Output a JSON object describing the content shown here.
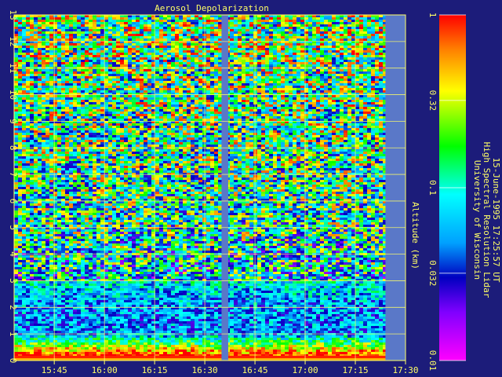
{
  "chart_data": {
    "type": "heatmap",
    "title": "Aerosol Depolarization",
    "ylabel": "Altitude (km)",
    "xlabel": "",
    "x_ticks": [
      "15:45",
      "16:00",
      "16:15",
      "16:30",
      "16:45",
      "17:00",
      "17:15",
      "17:30"
    ],
    "x_range": [
      "15:33",
      "17:30"
    ],
    "y_ticks": [
      0,
      1,
      2,
      3,
      4,
      5,
      6,
      7,
      8,
      9,
      10,
      11,
      12,
      13
    ],
    "ylim": [
      0,
      13
    ],
    "grid": true,
    "colorbar": {
      "scale": "log",
      "range": [
        0.01,
        1
      ],
      "tick_labels": [
        "1",
        "0.32",
        "0.1",
        "0.032",
        "0.01"
      ],
      "tick_values": [
        1,
        0.32,
        0.1,
        0.032,
        0.01
      ],
      "colors": [
        "#ff00ff",
        "#8000ff",
        "#0000c0",
        "#00ffff",
        "#00ff00",
        "#ffff00",
        "#ff8000",
        "#ff0000"
      ]
    },
    "data_gaps": [
      {
        "start": "16:35",
        "end": "16:37"
      },
      {
        "start": "17:24",
        "end": "17:30"
      }
    ],
    "profile_summary": [
      {
        "altitude_km": 0.2,
        "depolarization": 0.9
      },
      {
        "altitude_km": 1.0,
        "depolarization": 0.05
      },
      {
        "altitude_km": 2.0,
        "depolarization": 0.05
      },
      {
        "altitude_km": 3.0,
        "depolarization": 0.08
      },
      {
        "altitude_km": 5.0,
        "depolarization": 0.12
      },
      {
        "altitude_km": 8.0,
        "depolarization": 0.15
      },
      {
        "altitude_km": 11.0,
        "depolarization": 0.18
      },
      {
        "altitude_km": 12.5,
        "depolarization": 0.2
      }
    ]
  },
  "caption": {
    "line1": "University of Wisconsin",
    "line2": "High Spectral Resolution Lidar",
    "line3": "15-June-1995 17:25:57 UT"
  }
}
